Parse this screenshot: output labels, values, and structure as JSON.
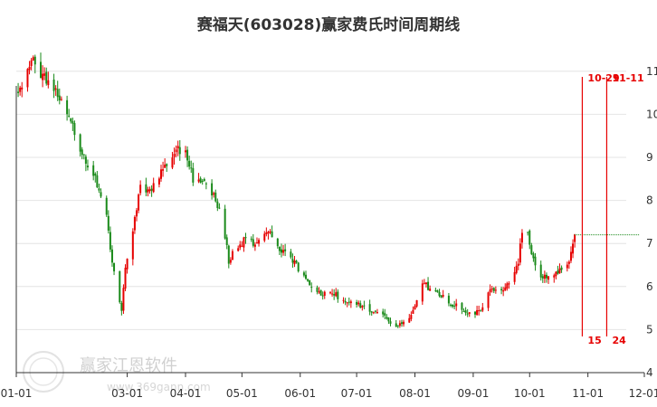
{
  "watermark": {
    "text": "赢家江恩软件",
    "url": "www.369gann.com"
  },
  "colors": {
    "up": "#e60000",
    "down": "#1a8a1a",
    "marker": "#e60000",
    "grid": "#e4e4e4",
    "axis": "#333333"
  },
  "chart_data": {
    "type": "candlestick",
    "title": "赛福天(603028)赢家费氏时间周期线",
    "xlabel": "",
    "ylabel": "",
    "x_ticks": [
      "01-01",
      "03-01",
      "04-01",
      "05-01",
      "06-01",
      "07-01",
      "08-01",
      "09-01",
      "10-01",
      "11-01",
      "12-01"
    ],
    "x_range": [
      "2019-01-01",
      "2019-12-01"
    ],
    "y_ticks": [
      4,
      5,
      6,
      7,
      8,
      9,
      10,
      11
    ],
    "ylim": [
      4,
      11.5
    ],
    "grid": "horizontal",
    "last_price_line": 7.2,
    "fibonacci_markers": [
      {
        "date": "2019-10-29",
        "top_label": "10-29",
        "bottom_label": "15"
      },
      {
        "date": "2019-11-11",
        "top_label": "11-11",
        "bottom_label": "24"
      }
    ],
    "price_path": [
      [
        "2019-01-02",
        10.5
      ],
      [
        "2019-01-06",
        10.9
      ],
      [
        "2019-01-10",
        11.2
      ],
      [
        "2019-01-15",
        10.9
      ],
      [
        "2019-01-20",
        10.7
      ],
      [
        "2019-01-25",
        10.3
      ],
      [
        "2019-01-30",
        9.8
      ],
      [
        "2019-02-04",
        9.2
      ],
      [
        "2019-02-10",
        8.7
      ],
      [
        "2019-02-14",
        8.3
      ],
      [
        "2019-02-18",
        7.6
      ],
      [
        "2019-02-21",
        6.6
      ],
      [
        "2019-02-24",
        5.8
      ],
      [
        "2019-02-26",
        5.4
      ],
      [
        "2019-02-28",
        6.5
      ],
      [
        "2019-03-04",
        7.3
      ],
      [
        "2019-03-08",
        8.4
      ],
      [
        "2019-03-12",
        8.2
      ],
      [
        "2019-03-16",
        8.4
      ],
      [
        "2019-03-20",
        8.8
      ],
      [
        "2019-03-24",
        8.9
      ],
      [
        "2019-03-28",
        9.2
      ],
      [
        "2019-04-01",
        9.1
      ],
      [
        "2019-04-05",
        8.5
      ],
      [
        "2019-04-09",
        8.5
      ],
      [
        "2019-04-13",
        8.3
      ],
      [
        "2019-04-17",
        8.0
      ],
      [
        "2019-04-21",
        7.5
      ],
      [
        "2019-04-24",
        6.6
      ],
      [
        "2019-04-28",
        6.9
      ],
      [
        "2019-05-03",
        7.1
      ],
      [
        "2019-05-08",
        7.0
      ],
      [
        "2019-05-12",
        7.3
      ],
      [
        "2019-05-16",
        7.2
      ],
      [
        "2019-05-20",
        6.9
      ],
      [
        "2019-05-24",
        6.8
      ],
      [
        "2019-05-28",
        6.6
      ],
      [
        "2019-06-02",
        6.3
      ],
      [
        "2019-06-06",
        6.0
      ],
      [
        "2019-06-10",
        5.9
      ],
      [
        "2019-06-15",
        5.8
      ],
      [
        "2019-06-20",
        5.8
      ],
      [
        "2019-06-25",
        5.6
      ],
      [
        "2019-07-01",
        5.6
      ],
      [
        "2019-07-06",
        5.5
      ],
      [
        "2019-07-12",
        5.4
      ],
      [
        "2019-07-18",
        5.2
      ],
      [
        "2019-07-23",
        5.1
      ],
      [
        "2019-07-28",
        5.2
      ],
      [
        "2019-08-01",
        5.5
      ],
      [
        "2019-08-05",
        6.1
      ],
      [
        "2019-08-10",
        5.9
      ],
      [
        "2019-08-15",
        5.8
      ],
      [
        "2019-08-20",
        5.6
      ],
      [
        "2019-08-25",
        5.5
      ],
      [
        "2019-08-30",
        5.4
      ],
      [
        "2019-09-05",
        5.4
      ],
      [
        "2019-09-10",
        5.9
      ],
      [
        "2019-09-15",
        5.9
      ],
      [
        "2019-09-20",
        6.1
      ],
      [
        "2019-09-25",
        6.6
      ],
      [
        "2019-09-28",
        7.6
      ],
      [
        "2019-10-02",
        6.8
      ],
      [
        "2019-10-07",
        6.2
      ],
      [
        "2019-10-13",
        6.3
      ],
      [
        "2019-10-18",
        6.4
      ],
      [
        "2019-10-22",
        6.6
      ],
      [
        "2019-10-25",
        7.2
      ]
    ]
  }
}
